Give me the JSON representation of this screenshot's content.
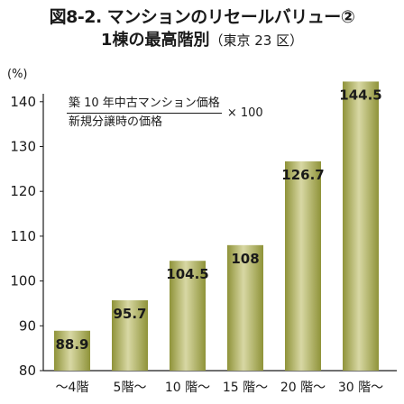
{
  "title": {
    "line1": "図8-2. マンションのリセールバリュー②",
    "line2": "1棟の最高階別",
    "line2_note": "（東京 23 区）"
  },
  "formula": {
    "numerator": "築 10 年中古マンション価格",
    "denominator": "新規分譲時の価格",
    "multiplier": "× 100"
  },
  "chart_data": {
    "type": "bar",
    "title": "図8-2. マンションのリセールバリュー② 1棟の最高階別（東京 23 区）",
    "ylabel": "(%)",
    "xlabel": "",
    "categories": [
      "～4階",
      "5階～",
      "10 階～",
      "15 階～",
      "20 階～",
      "30 階～"
    ],
    "values": [
      88.9,
      95.7,
      104.5,
      108,
      126.7,
      144.5
    ],
    "value_labels": [
      "88.9",
      "95.7",
      "104.5",
      "108",
      "126.7",
      "144.5"
    ],
    "yticks": [
      80,
      90,
      100,
      110,
      120,
      130,
      140
    ],
    "ylim": [
      80,
      147
    ],
    "grid": false,
    "legend": "none",
    "colors": {
      "bar_light": "#d4d49a",
      "bar_dark": "#8f9339",
      "axis": "#1a1a1a"
    }
  }
}
